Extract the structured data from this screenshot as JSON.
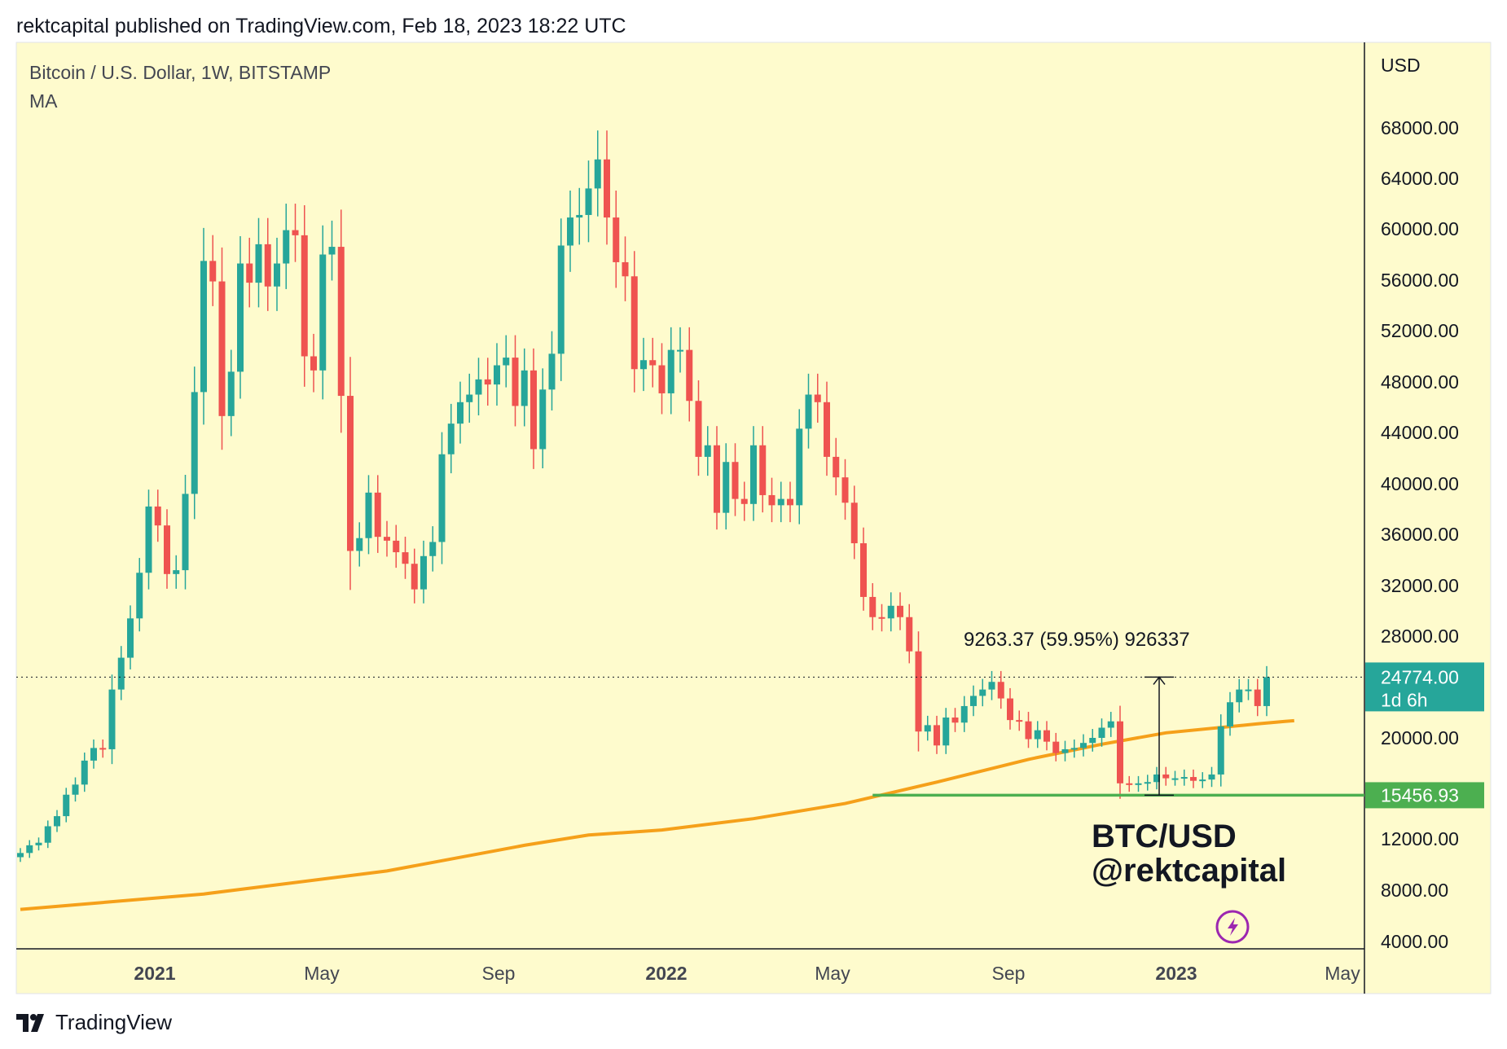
{
  "header": {
    "publisher_line": "rektcapital published on TradingView.com, Feb 18, 2023 18:22 UTC"
  },
  "chart_data": {
    "type": "candlestick",
    "symbol_line": "Bitcoin / U.S. Dollar, 1W, BITSTAMP",
    "indicator_label": "MA",
    "currency_label": "USD",
    "y_ticks": [
      68000,
      64000,
      60000,
      56000,
      52000,
      48000,
      44000,
      40000,
      36000,
      32000,
      28000,
      20000,
      12000,
      8000,
      4000
    ],
    "y_tick_labels": [
      "68000.00",
      "64000.00",
      "60000.00",
      "56000.00",
      "52000.00",
      "48000.00",
      "44000.00",
      "40000.00",
      "36000.00",
      "32000.00",
      "28000.00",
      "20000.00",
      "12000.00",
      "8000.00",
      "4000.00"
    ],
    "x_ticks": [
      {
        "label": "2021",
        "bold": true
      },
      {
        "label": "May",
        "bold": false
      },
      {
        "label": "Sep",
        "bold": false
      },
      {
        "label": "2022",
        "bold": true
      },
      {
        "label": "May",
        "bold": false
      },
      {
        "label": "Sep",
        "bold": false
      },
      {
        "label": "2023",
        "bold": true
      },
      {
        "label": "May",
        "bold": false
      }
    ],
    "last_price": {
      "value": 24774.0,
      "label": "24774.00",
      "countdown": "1d 6h"
    },
    "support": {
      "value": 15456.93,
      "label": "15456.93"
    },
    "measure_label": "9263.37 (59.95%) 926337",
    "watermark_lines": [
      "BTC/USD",
      "@rektcapital"
    ],
    "colors": {
      "background": "#fefbcd",
      "up": "#26a69a",
      "down": "#ef5350",
      "ma": "#f5a01a",
      "support": "#4caf50",
      "last_price_badge": "#26a69a",
      "support_badge": "#4caf50"
    },
    "candles_close": [
      10900,
      11500,
      11700,
      13000,
      13800,
      15500,
      16300,
      18200,
      19200,
      19100,
      23800,
      26300,
      29400,
      33000,
      38200,
      36700,
      32900,
      33200,
      39200,
      47200,
      57500,
      55900,
      45300,
      48800,
      57300,
      55800,
      58800,
      55500,
      57300,
      59900,
      59500,
      50000,
      48900,
      58000,
      58600,
      46900,
      34700,
      35700,
      39300,
      35800,
      35500,
      34600,
      33700,
      31700,
      34300,
      35400,
      42300,
      44700,
      46400,
      47000,
      48200,
      47800,
      49300,
      49900,
      46100,
      48900,
      42700,
      47400,
      50200,
      58700,
      60900,
      61100,
      63200,
      65500,
      60900,
      57400,
      56300,
      49000,
      49700,
      49300,
      47100,
      50500,
      50500,
      46500,
      42100,
      43000,
      37700,
      41700,
      38800,
      38400,
      43000,
      39100,
      38300,
      38800,
      38300,
      44300,
      47000,
      46400,
      42100,
      40500,
      38500,
      35300,
      31100,
      29500,
      29400,
      30400,
      29500,
      26800,
      20500,
      21000,
      19400,
      21600,
      21200,
      22500,
      23300,
      23800,
      24400,
      23100,
      21400,
      21300,
      19900,
      20600,
      19700,
      18800,
      19100,
      19200,
      19600,
      20000,
      20800,
      21300,
      16400,
      16300,
      16400,
      16500,
      17100,
      16800,
      16800,
      16900,
      16600,
      16700,
      17100,
      20900,
      22800,
      23800,
      23800,
      22500,
      24774
    ],
    "ma_line": {
      "label": "MA",
      "points": [
        [
          0,
          6500
        ],
        [
          20,
          7700
        ],
        [
          40,
          9500
        ],
        [
          55,
          11500
        ],
        [
          62,
          12300
        ],
        [
          70,
          12700
        ],
        [
          80,
          13600
        ],
        [
          90,
          14800
        ],
        [
          100,
          16500
        ],
        [
          110,
          18300
        ],
        [
          118,
          19500
        ],
        [
          125,
          20400
        ],
        [
          135,
          21100
        ],
        [
          138,
          21300
        ],
        [
          139,
          21350
        ]
      ]
    }
  }
}
